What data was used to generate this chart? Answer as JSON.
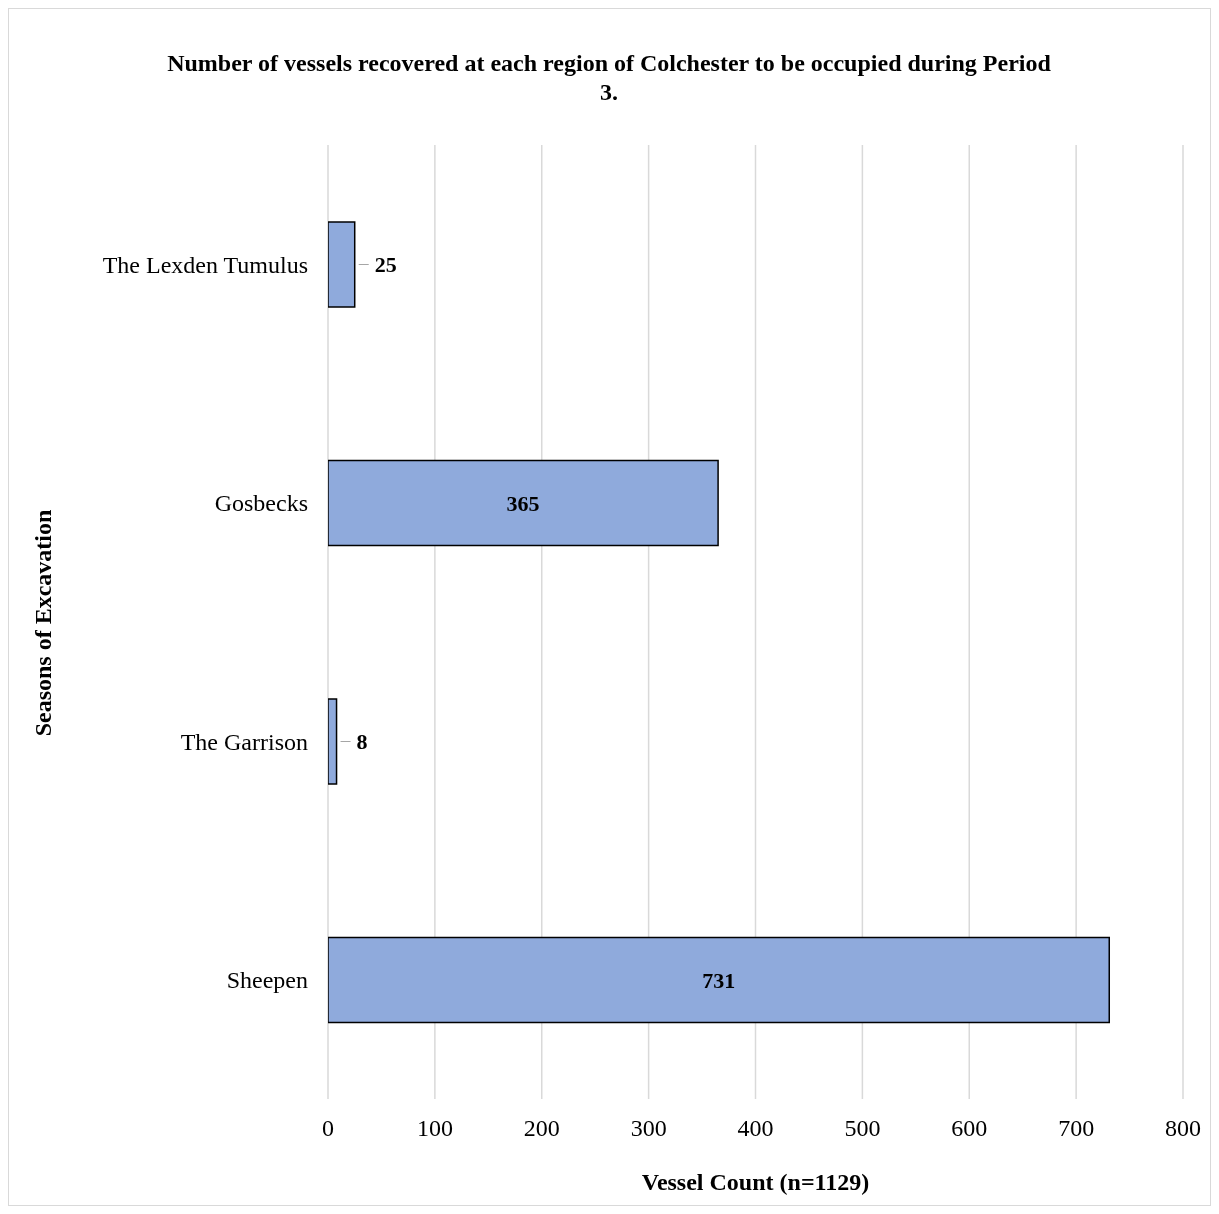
{
  "chart_data": {
    "type": "bar",
    "orientation": "horizontal",
    "title": "Number of vessels recovered at each region of Colchester to be occupied during Period 3.",
    "xlabel": "Vessel Count (n=1129)",
    "ylabel": "Seasons of Excavation",
    "categories": [
      "The Lexden Tumulus",
      "Gosbecks",
      "The Garrison",
      "Sheepen"
    ],
    "values": [
      25,
      365,
      8,
      731
    ],
    "color": "#8faadc",
    "xlim": [
      0,
      800
    ],
    "xticks": [
      0,
      100,
      200,
      300,
      400,
      500,
      600,
      700,
      800
    ],
    "grid": "x",
    "data_labels": true
  }
}
